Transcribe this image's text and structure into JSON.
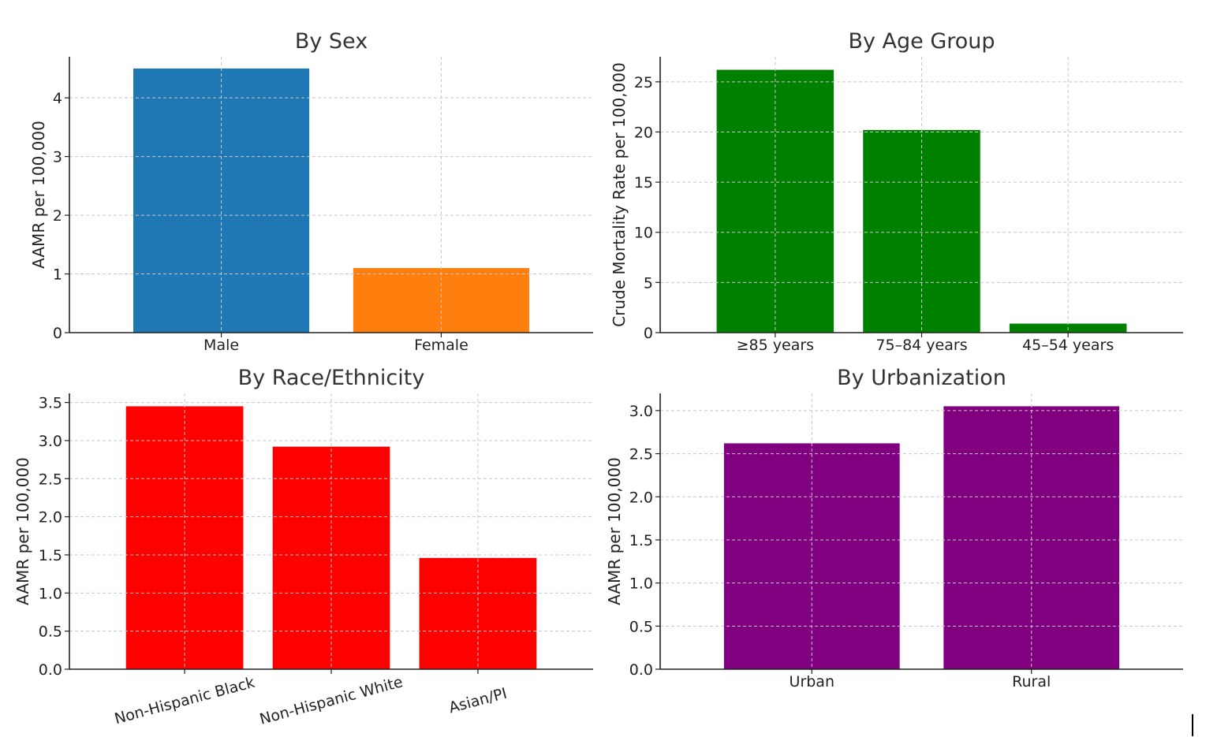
{
  "chart_data": [
    {
      "type": "bar",
      "title": "By Sex",
      "xlabel": "",
      "ylabel": "AAMR per 100,000",
      "categories": [
        "Male",
        "Female"
      ],
      "values": [
        4.5,
        1.1
      ],
      "colors": [
        "#1f77b4",
        "#ff7f0e"
      ],
      "ylim": [
        0,
        4.7
      ],
      "yticks": [
        0,
        1,
        2,
        3,
        4
      ],
      "ytick_labels": [
        "0",
        "1",
        "2",
        "3",
        "4"
      ],
      "grid": true,
      "rotate_xticks": false
    },
    {
      "type": "bar",
      "title": "By Age Group",
      "xlabel": "",
      "ylabel": "Crude Mortality Rate per 100,000",
      "categories": [
        "≥85 years",
        "75–84 years",
        "45–54 years"
      ],
      "values": [
        26.2,
        20.2,
        0.9
      ],
      "colors": [
        "#008000",
        "#008000",
        "#008000"
      ],
      "ylim": [
        0,
        27.5
      ],
      "yticks": [
        0,
        5,
        10,
        15,
        20,
        25
      ],
      "ytick_labels": [
        "0",
        "5",
        "10",
        "15",
        "20",
        "25"
      ],
      "grid": true,
      "rotate_xticks": false
    },
    {
      "type": "bar",
      "title": "By Race/Ethnicity",
      "xlabel": "",
      "ylabel": "AAMR per 100,000",
      "categories": [
        "Non-Hispanic Black",
        "Non-Hispanic White",
        "Asian/PI"
      ],
      "values": [
        3.45,
        2.92,
        1.46
      ],
      "colors": [
        "#ff0000",
        "#ff0000",
        "#ff0000"
      ],
      "ylim": [
        0,
        3.62
      ],
      "yticks": [
        0,
        0.5,
        1.0,
        1.5,
        2.0,
        2.5,
        3.0,
        3.5
      ],
      "ytick_labels": [
        "0.0",
        "0.5",
        "1.0",
        "1.5",
        "2.0",
        "2.5",
        "3.0",
        "3.5"
      ],
      "grid": true,
      "rotate_xticks": true
    },
    {
      "type": "bar",
      "title": "By Urbanization",
      "xlabel": "",
      "ylabel": "AAMR per 100,000",
      "categories": [
        "Urban",
        "Rural"
      ],
      "values": [
        2.62,
        3.05
      ],
      "colors": [
        "#800080",
        "#800080"
      ],
      "ylim": [
        0,
        3.2
      ],
      "yticks": [
        0,
        0.5,
        1.0,
        1.5,
        2.0,
        2.5,
        3.0
      ],
      "ytick_labels": [
        "0.0",
        "0.5",
        "1.0",
        "1.5",
        "2.0",
        "2.5",
        "3.0"
      ],
      "grid": true,
      "rotate_xticks": false
    }
  ]
}
